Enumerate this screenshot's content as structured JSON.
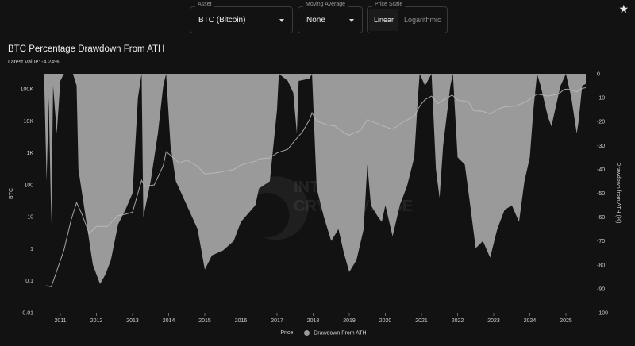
{
  "controls": {
    "asset": {
      "label": "Asset",
      "value": "BTC (Bitcoin)"
    },
    "moving_average": {
      "label": "Moving Average",
      "value": "None"
    },
    "price_scale": {
      "label": "Price Scale",
      "options": [
        "Linear",
        "Logarithmic"
      ],
      "selected": "Linear"
    }
  },
  "icons": {
    "favorite": "star-icon"
  },
  "colors": {
    "background": "#121212",
    "drawdown_fill": "#9a9a9a",
    "price_line": "#bdbdbd"
  },
  "chart_data": {
    "type": "area",
    "title": "BTC Percentage Drawdown From ATH",
    "subtitle": "Latest Value: -4.24%",
    "watermark": [
      "INTO",
      "CRYPTOVERSE"
    ],
    "x_ticks": [
      "2011",
      "2012",
      "2013",
      "2014",
      "2015",
      "2016",
      "2017",
      "2018",
      "2019",
      "2020",
      "2021",
      "2022",
      "2023",
      "2024",
      "2025"
    ],
    "y_left": {
      "label": "BTC",
      "scale": "log",
      "ticks": [
        "100K",
        "10K",
        "1K",
        "100",
        "10",
        "1",
        "0.1",
        "0.01"
      ],
      "range": [
        0.01,
        300000
      ]
    },
    "y_right": {
      "label": "Drawdown from ATH (%)",
      "ticks": [
        "0",
        "-10",
        "-20",
        "-30",
        "-40",
        "-50",
        "-60",
        "-70",
        "-80",
        "-90",
        "-100"
      ],
      "range": [
        -100,
        0
      ]
    },
    "grid": false,
    "legend_position": "bottom-center",
    "legend": [
      {
        "name": "Price",
        "marker": "line"
      },
      {
        "name": "Drawdown From ATH",
        "marker": "dot"
      }
    ],
    "series": [
      {
        "name": "Price",
        "axis": "left",
        "points": [
          [
            2010.6,
            0.07
          ],
          [
            2010.75,
            0.065
          ],
          [
            2010.9,
            0.2
          ],
          [
            2011.1,
            0.9
          ],
          [
            2011.3,
            8
          ],
          [
            2011.45,
            28
          ],
          [
            2011.6,
            12
          ],
          [
            2011.8,
            3
          ],
          [
            2012.0,
            5
          ],
          [
            2012.3,
            5
          ],
          [
            2012.6,
            11
          ],
          [
            2012.8,
            12
          ],
          [
            2013.0,
            14
          ],
          [
            2013.25,
            140
          ],
          [
            2013.35,
            90
          ],
          [
            2013.6,
            100
          ],
          [
            2013.85,
            400
          ],
          [
            2013.93,
            1100
          ],
          [
            2014.05,
            850
          ],
          [
            2014.3,
            480
          ],
          [
            2014.5,
            600
          ],
          [
            2014.8,
            380
          ],
          [
            2015.0,
            220
          ],
          [
            2015.3,
            240
          ],
          [
            2015.5,
            260
          ],
          [
            2015.8,
            300
          ],
          [
            2016.0,
            420
          ],
          [
            2016.4,
            550
          ],
          [
            2016.5,
            650
          ],
          [
            2016.8,
            700
          ],
          [
            2017.0,
            1000
          ],
          [
            2017.3,
            1300
          ],
          [
            2017.5,
            2500
          ],
          [
            2017.7,
            4500
          ],
          [
            2017.9,
            11000
          ],
          [
            2017.97,
            18000
          ],
          [
            2018.1,
            10000
          ],
          [
            2018.4,
            7500
          ],
          [
            2018.6,
            7000
          ],
          [
            2018.9,
            4000
          ],
          [
            2019.0,
            3600
          ],
          [
            2019.3,
            5000
          ],
          [
            2019.5,
            11000
          ],
          [
            2019.7,
            9000
          ],
          [
            2019.9,
            7200
          ],
          [
            2020.2,
            5500
          ],
          [
            2020.5,
            9500
          ],
          [
            2020.8,
            14000
          ],
          [
            2020.95,
            29000
          ],
          [
            2021.1,
            47000
          ],
          [
            2021.28,
            60000
          ],
          [
            2021.45,
            35000
          ],
          [
            2021.6,
            45000
          ],
          [
            2021.85,
            65000
          ],
          [
            2022.0,
            45000
          ],
          [
            2022.3,
            40000
          ],
          [
            2022.45,
            21000
          ],
          [
            2022.7,
            20000
          ],
          [
            2022.9,
            16500
          ],
          [
            2023.1,
            23000
          ],
          [
            2023.3,
            28000
          ],
          [
            2023.6,
            29000
          ],
          [
            2023.9,
            40000
          ],
          [
            2024.2,
            70000
          ],
          [
            2024.5,
            60000
          ],
          [
            2024.8,
            70000
          ],
          [
            2024.95,
            97000
          ],
          [
            2025.05,
            100000
          ],
          [
            2025.3,
            82000
          ],
          [
            2025.45,
            105000
          ],
          [
            2025.55,
            110000
          ]
        ]
      },
      {
        "name": "Drawdown From ATH",
        "axis": "right",
        "points": [
          [
            2010.55,
            0
          ],
          [
            2010.62,
            -45
          ],
          [
            2010.68,
            -10
          ],
          [
            2010.75,
            -63
          ],
          [
            2010.8,
            -5
          ],
          [
            2010.9,
            -25
          ],
          [
            2011.0,
            -3
          ],
          [
            2011.1,
            0
          ],
          [
            2011.35,
            0
          ],
          [
            2011.45,
            -5
          ],
          [
            2011.5,
            -40
          ],
          [
            2011.7,
            -60
          ],
          [
            2011.9,
            -80
          ],
          [
            2012.1,
            -88
          ],
          [
            2012.25,
            -84
          ],
          [
            2012.4,
            -78
          ],
          [
            2012.6,
            -63
          ],
          [
            2012.8,
            -57
          ],
          [
            2013.0,
            -50
          ],
          [
            2013.15,
            -10
          ],
          [
            2013.25,
            0
          ],
          [
            2013.3,
            -60
          ],
          [
            2013.5,
            -45
          ],
          [
            2013.7,
            -25
          ],
          [
            2013.85,
            -5
          ],
          [
            2013.93,
            0
          ],
          [
            2014.05,
            -30
          ],
          [
            2014.2,
            -45
          ],
          [
            2014.5,
            -55
          ],
          [
            2014.8,
            -65
          ],
          [
            2015.0,
            -82
          ],
          [
            2015.2,
            -76
          ],
          [
            2015.5,
            -74
          ],
          [
            2015.8,
            -70
          ],
          [
            2016.0,
            -62
          ],
          [
            2016.4,
            -55
          ],
          [
            2016.5,
            -48
          ],
          [
            2016.8,
            -45
          ],
          [
            2017.0,
            -15
          ],
          [
            2017.05,
            0
          ],
          [
            2017.3,
            -3
          ],
          [
            2017.45,
            -8
          ],
          [
            2017.55,
            -25
          ],
          [
            2017.6,
            -3
          ],
          [
            2017.9,
            -2
          ],
          [
            2017.97,
            0
          ],
          [
            2018.1,
            -48
          ],
          [
            2018.3,
            -60
          ],
          [
            2018.5,
            -70
          ],
          [
            2018.7,
            -65
          ],
          [
            2018.85,
            -75
          ],
          [
            2019.0,
            -83
          ],
          [
            2019.2,
            -78
          ],
          [
            2019.4,
            -65
          ],
          [
            2019.5,
            -38
          ],
          [
            2019.6,
            -55
          ],
          [
            2019.8,
            -60
          ],
          [
            2019.9,
            -62
          ],
          [
            2020.0,
            -55
          ],
          [
            2020.2,
            -68
          ],
          [
            2020.4,
            -55
          ],
          [
            2020.6,
            -47
          ],
          [
            2020.8,
            -35
          ],
          [
            2020.9,
            -10
          ],
          [
            2020.95,
            0
          ],
          [
            2021.1,
            -5
          ],
          [
            2021.28,
            0
          ],
          [
            2021.4,
            -40
          ],
          [
            2021.5,
            -52
          ],
          [
            2021.6,
            -30
          ],
          [
            2021.8,
            -5
          ],
          [
            2021.87,
            0
          ],
          [
            2022.0,
            -35
          ],
          [
            2022.2,
            -38
          ],
          [
            2022.35,
            -55
          ],
          [
            2022.5,
            -73
          ],
          [
            2022.7,
            -70
          ],
          [
            2022.9,
            -77
          ],
          [
            2023.1,
            -65
          ],
          [
            2023.3,
            -57
          ],
          [
            2023.5,
            -55
          ],
          [
            2023.7,
            -62
          ],
          [
            2023.85,
            -45
          ],
          [
            2024.0,
            -35
          ],
          [
            2024.1,
            -15
          ],
          [
            2024.2,
            0
          ],
          [
            2024.3,
            -5
          ],
          [
            2024.5,
            -18
          ],
          [
            2024.6,
            -22
          ],
          [
            2024.7,
            -15
          ],
          [
            2024.85,
            -5
          ],
          [
            2025.0,
            0
          ],
          [
            2025.15,
            -10
          ],
          [
            2025.3,
            -25
          ],
          [
            2025.35,
            -20
          ],
          [
            2025.45,
            -5
          ],
          [
            2025.55,
            -4.24
          ]
        ]
      }
    ]
  }
}
